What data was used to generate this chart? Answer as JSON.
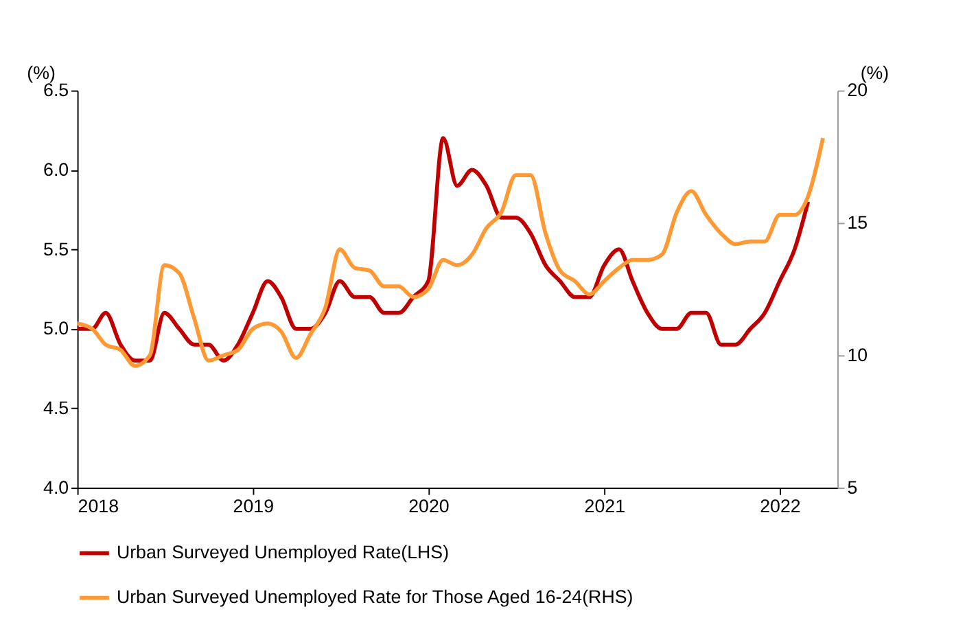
{
  "chart_data": {
    "type": "line",
    "x": [
      "2018-01",
      "2018-02",
      "2018-03",
      "2018-04",
      "2018-05",
      "2018-06",
      "2018-07",
      "2018-08",
      "2018-09",
      "2018-10",
      "2018-11",
      "2018-12",
      "2019-01",
      "2019-02",
      "2019-03",
      "2019-04",
      "2019-05",
      "2019-06",
      "2019-07",
      "2019-08",
      "2019-09",
      "2019-10",
      "2019-11",
      "2019-12",
      "2020-01",
      "2020-02",
      "2020-03",
      "2020-04",
      "2020-05",
      "2020-06",
      "2020-07",
      "2020-08",
      "2020-09",
      "2020-10",
      "2020-11",
      "2020-12",
      "2021-01",
      "2021-02",
      "2021-03",
      "2021-04",
      "2021-05",
      "2021-06",
      "2021-07",
      "2021-08",
      "2021-09",
      "2021-10",
      "2021-11",
      "2021-12",
      "2022-01",
      "2022-02",
      "2022-03",
      "2022-04"
    ],
    "series": [
      {
        "name": "Urban Surveyed Unemployed Rate(LHS)",
        "color": "#c00000",
        "values": [
          5.0,
          5.0,
          5.1,
          4.9,
          4.8,
          4.8,
          5.1,
          5.0,
          4.9,
          4.9,
          4.8,
          4.9,
          5.1,
          5.3,
          5.2,
          5.0,
          5.0,
          5.1,
          5.3,
          5.2,
          5.2,
          5.1,
          5.1,
          5.2,
          5.3,
          6.2,
          5.9,
          6.0,
          5.9,
          5.7,
          5.7,
          5.6,
          5.4,
          5.3,
          5.2,
          5.2,
          5.4,
          5.5,
          5.3,
          5.1,
          5.0,
          5.0,
          5.1,
          5.1,
          4.9,
          4.9,
          5.0,
          5.1,
          5.3,
          5.5,
          5.8,
          null
        ]
      },
      {
        "name": "Urban Surveyed Unemployed Rate for Those Aged 16-24(RHS)",
        "color": "#ff9933",
        "axis": "y2",
        "values": [
          11.2,
          11.0,
          10.4,
          10.2,
          9.6,
          10.0,
          13.4,
          13.1,
          11.4,
          9.8,
          10.0,
          10.2,
          11.0,
          11.2,
          10.9,
          9.9,
          10.8,
          11.8,
          14.0,
          13.3,
          13.2,
          12.6,
          12.6,
          12.2,
          12.5,
          13.6,
          13.4,
          13.8,
          14.8,
          15.4,
          16.8,
          16.8,
          14.6,
          13.2,
          12.8,
          12.3,
          12.8,
          13.3,
          13.6,
          13.6,
          13.8,
          15.4,
          16.2,
          15.3,
          14.6,
          14.2,
          14.3,
          14.3,
          15.3,
          15.3,
          16.0,
          18.2
        ]
      }
    ],
    "xlim": [
      "2018-01",
      "2022-05"
    ],
    "xticks": [
      {
        "value": "2018-01",
        "label": "2018"
      },
      {
        "value": "2019-01",
        "label": "2019"
      },
      {
        "value": "2020-01",
        "label": "2020"
      },
      {
        "value": "2021-01",
        "label": "2021"
      },
      {
        "value": "2022-01",
        "label": "2022"
      }
    ],
    "ylabel": "(%)",
    "y2label": "(%)",
    "ylim": [
      4.0,
      6.5
    ],
    "yticks": [
      {
        "value": 4.0,
        "label": "4.0"
      },
      {
        "value": 4.5,
        "label": "4.5"
      },
      {
        "value": 5.0,
        "label": "5.0"
      },
      {
        "value": 5.5,
        "label": "5.5"
      },
      {
        "value": 6.0,
        "label": "6.0"
      },
      {
        "value": 6.5,
        "label": "6.5"
      }
    ],
    "y2lim": [
      5,
      20
    ],
    "y2ticks": [
      5,
      10,
      15,
      20
    ],
    "grid": false,
    "legend": "bottom",
    "marker": "none",
    "line_style": "solid"
  }
}
